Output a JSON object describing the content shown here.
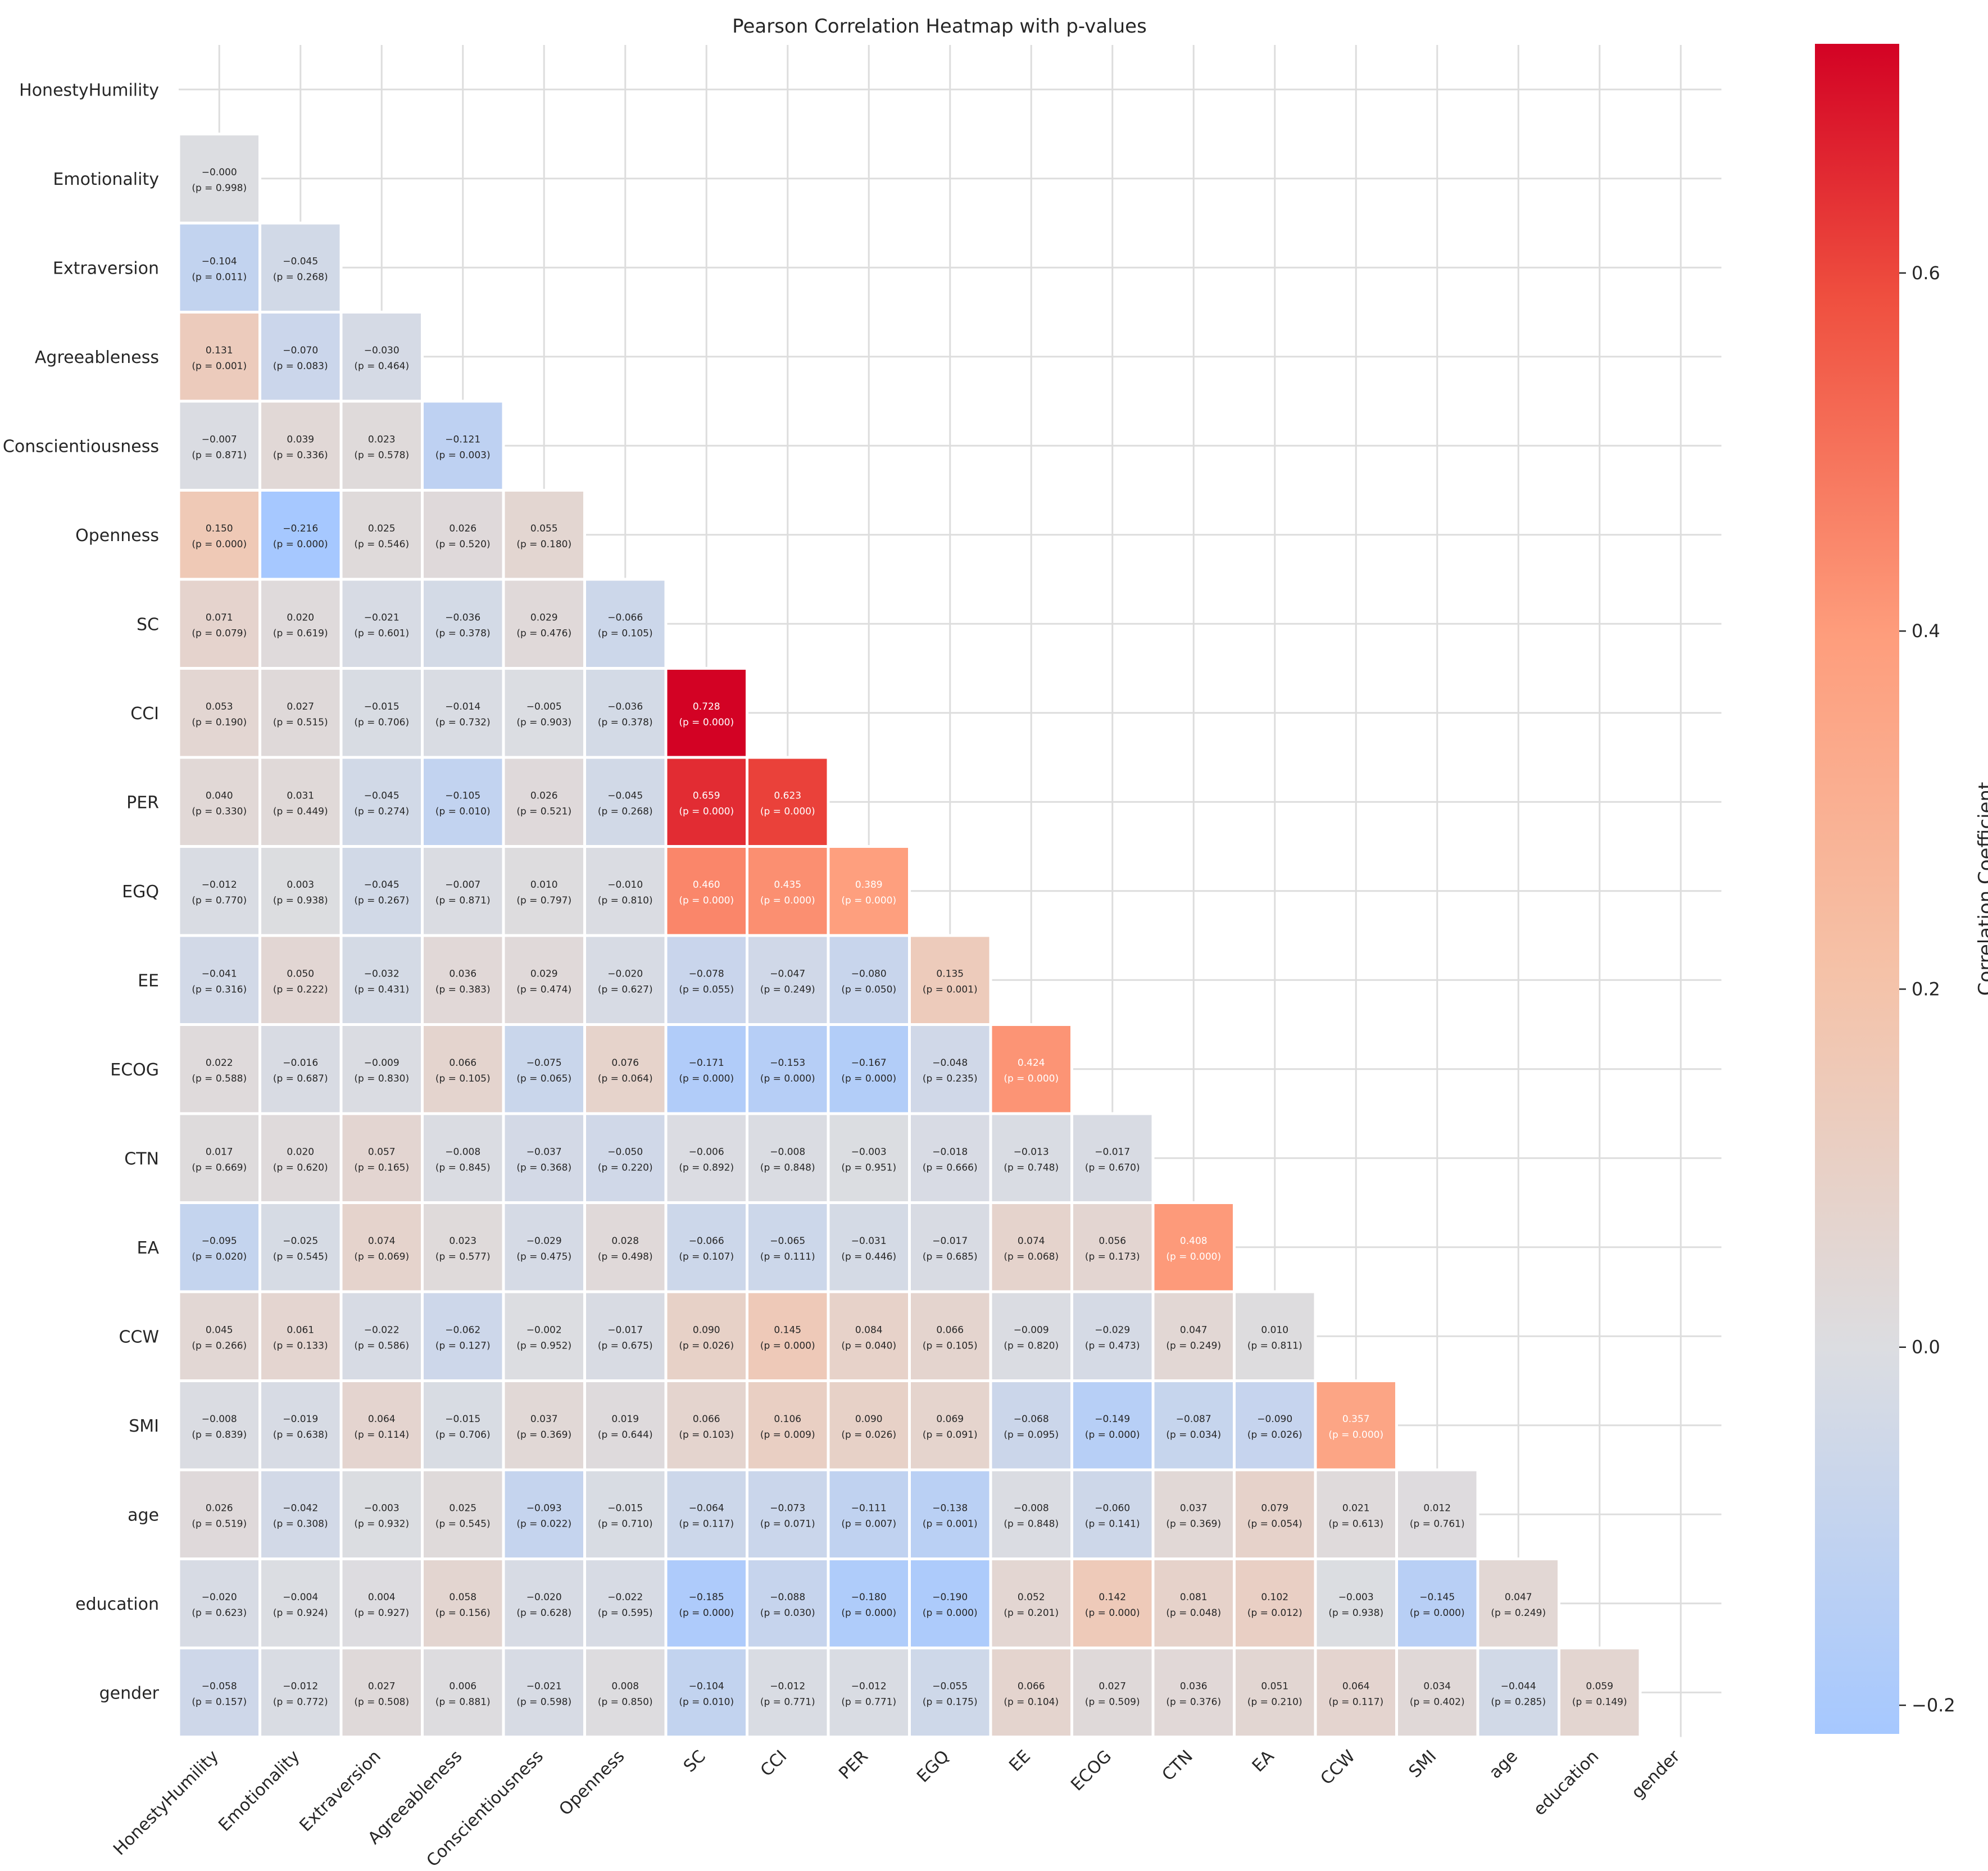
{
  "chart_data": {
    "type": "heatmap",
    "title": "Pearson Correlation Heatmap with p-values",
    "variables": [
      "HonestyHumility",
      "Emotionality",
      "Extraversion",
      "Agreeableness",
      "Conscientiousness",
      "Openness",
      "SC",
      "CCI",
      "PER",
      "EGQ",
      "EE",
      "ECOG",
      "CTN",
      "EA",
      "CCW",
      "SMI",
      "age",
      "education",
      "gender"
    ],
    "mask": "upper triangle including diagonal",
    "r": [
      [],
      [
        "−0.000"
      ],
      [
        "−0.104",
        "−0.045"
      ],
      [
        "0.131",
        "−0.070",
        "−0.030"
      ],
      [
        "−0.007",
        "0.039",
        "0.023",
        "−0.121"
      ],
      [
        "0.150",
        "−0.216",
        "0.025",
        "0.026",
        "0.055"
      ],
      [
        "0.071",
        "0.020",
        "−0.021",
        "−0.036",
        "0.029",
        "−0.066"
      ],
      [
        "0.053",
        "0.027",
        "−0.015",
        "−0.014",
        "−0.005",
        "−0.036",
        "0.728"
      ],
      [
        "0.040",
        "0.031",
        "−0.045",
        "−0.105",
        "0.026",
        "−0.045",
        "0.659",
        "0.623"
      ],
      [
        "−0.012",
        "0.003",
        "−0.045",
        "−0.007",
        "0.010",
        "−0.010",
        "0.460",
        "0.435",
        "0.389"
      ],
      [
        "−0.041",
        "0.050",
        "−0.032",
        "0.036",
        "0.029",
        "−0.020",
        "−0.078",
        "−0.047",
        "−0.080",
        "0.135"
      ],
      [
        "0.022",
        "−0.016",
        "−0.009",
        "0.066",
        "−0.075",
        "0.076",
        "−0.171",
        "−0.153",
        "−0.167",
        "−0.048",
        "0.424"
      ],
      [
        "0.017",
        "0.020",
        "0.057",
        "−0.008",
        "−0.037",
        "−0.050",
        "−0.006",
        "−0.008",
        "−0.003",
        "−0.018",
        "−0.013",
        "−0.017"
      ],
      [
        "−0.095",
        "−0.025",
        "0.074",
        "0.023",
        "−0.029",
        "0.028",
        "−0.066",
        "−0.065",
        "−0.031",
        "−0.017",
        "0.074",
        "0.056",
        "0.408"
      ],
      [
        "0.045",
        "0.061",
        "−0.022",
        "−0.062",
        "−0.002",
        "−0.017",
        "0.090",
        "0.145",
        "0.084",
        "0.066",
        "−0.009",
        "−0.029",
        "0.047",
        "0.010"
      ],
      [
        "−0.008",
        "−0.019",
        "0.064",
        "−0.015",
        "0.037",
        "0.019",
        "0.066",
        "0.106",
        "0.090",
        "0.069",
        "−0.068",
        "−0.149",
        "−0.087",
        "−0.090",
        "0.357"
      ],
      [
        "0.026",
        "−0.042",
        "−0.003",
        "0.025",
        "−0.093",
        "−0.015",
        "−0.064",
        "−0.073",
        "−0.111",
        "−0.138",
        "−0.008",
        "−0.060",
        "0.037",
        "0.079",
        "0.021",
        "0.012"
      ],
      [
        "−0.020",
        "−0.004",
        "0.004",
        "0.058",
        "−0.020",
        "−0.022",
        "−0.185",
        "−0.088",
        "−0.180",
        "−0.190",
        "0.052",
        "0.142",
        "0.081",
        "0.102",
        "−0.003",
        "−0.145",
        "0.047"
      ],
      [
        "−0.058",
        "−0.012",
        "0.027",
        "0.006",
        "−0.021",
        "0.008",
        "−0.104",
        "−0.012",
        "−0.012",
        "−0.055",
        "0.066",
        "0.027",
        "0.036",
        "0.051",
        "0.064",
        "0.034",
        "−0.044",
        "0.059"
      ]
    ],
    "p": [
      [],
      [
        "(p = 0.998)"
      ],
      [
        "(p = 0.011)",
        "(p = 0.268)"
      ],
      [
        "(p = 0.001)",
        "(p = 0.083)",
        "(p = 0.464)"
      ],
      [
        "(p = 0.871)",
        "(p = 0.336)",
        "(p = 0.578)",
        "(p = 0.003)"
      ],
      [
        "(p = 0.000)",
        "(p = 0.000)",
        "(p = 0.546)",
        "(p = 0.520)",
        "(p = 0.180)"
      ],
      [
        "(p = 0.079)",
        "(p = 0.619)",
        "(p = 0.601)",
        "(p = 0.378)",
        "(p = 0.476)",
        "(p = 0.105)"
      ],
      [
        "(p = 0.190)",
        "(p = 0.515)",
        "(p = 0.706)",
        "(p = 0.732)",
        "(p = 0.903)",
        "(p = 0.378)",
        "(p = 0.000)"
      ],
      [
        "(p = 0.330)",
        "(p = 0.449)",
        "(p = 0.274)",
        "(p = 0.010)",
        "(p = 0.521)",
        "(p = 0.268)",
        "(p = 0.000)",
        "(p = 0.000)"
      ],
      [
        "(p = 0.770)",
        "(p = 0.938)",
        "(p = 0.267)",
        "(p = 0.871)",
        "(p = 0.797)",
        "(p = 0.810)",
        "(p = 0.000)",
        "(p = 0.000)",
        "(p = 0.000)"
      ],
      [
        "(p = 0.316)",
        "(p = 0.222)",
        "(p = 0.431)",
        "(p = 0.383)",
        "(p = 0.474)",
        "(p = 0.627)",
        "(p = 0.055)",
        "(p = 0.249)",
        "(p = 0.050)",
        "(p = 0.001)"
      ],
      [
        "(p = 0.588)",
        "(p = 0.687)",
        "(p = 0.830)",
        "(p = 0.105)",
        "(p = 0.065)",
        "(p = 0.064)",
        "(p = 0.000)",
        "(p = 0.000)",
        "(p = 0.000)",
        "(p = 0.235)",
        "(p = 0.000)"
      ],
      [
        "(p = 0.669)",
        "(p = 0.620)",
        "(p = 0.165)",
        "(p = 0.845)",
        "(p = 0.368)",
        "(p = 0.220)",
        "(p = 0.892)",
        "(p = 0.848)",
        "(p = 0.951)",
        "(p = 0.666)",
        "(p = 0.748)",
        "(p = 0.670)"
      ],
      [
        "(p = 0.020)",
        "(p = 0.545)",
        "(p = 0.069)",
        "(p = 0.577)",
        "(p = 0.475)",
        "(p = 0.498)",
        "(p = 0.107)",
        "(p = 0.111)",
        "(p = 0.446)",
        "(p = 0.685)",
        "(p = 0.068)",
        "(p = 0.173)",
        "(p = 0.000)"
      ],
      [
        "(p = 0.266)",
        "(p = 0.133)",
        "(p = 0.586)",
        "(p = 0.127)",
        "(p = 0.952)",
        "(p = 0.675)",
        "(p = 0.026)",
        "(p = 0.000)",
        "(p = 0.040)",
        "(p = 0.105)",
        "(p = 0.820)",
        "(p = 0.473)",
        "(p = 0.249)",
        "(p = 0.811)"
      ],
      [
        "(p = 0.839)",
        "(p = 0.638)",
        "(p = 0.114)",
        "(p = 0.706)",
        "(p = 0.369)",
        "(p = 0.644)",
        "(p = 0.103)",
        "(p = 0.009)",
        "(p = 0.026)",
        "(p = 0.091)",
        "(p = 0.095)",
        "(p = 0.000)",
        "(p = 0.034)",
        "(p = 0.026)",
        "(p = 0.000)"
      ],
      [
        "(p = 0.519)",
        "(p = 0.308)",
        "(p = 0.932)",
        "(p = 0.545)",
        "(p = 0.022)",
        "(p = 0.710)",
        "(p = 0.117)",
        "(p = 0.071)",
        "(p = 0.007)",
        "(p = 0.001)",
        "(p = 0.848)",
        "(p = 0.141)",
        "(p = 0.369)",
        "(p = 0.054)",
        "(p = 0.613)",
        "(p = 0.761)"
      ],
      [
        "(p = 0.623)",
        "(p = 0.924)",
        "(p = 0.927)",
        "(p = 0.156)",
        "(p = 0.628)",
        "(p = 0.595)",
        "(p = 0.000)",
        "(p = 0.030)",
        "(p = 0.000)",
        "(p = 0.000)",
        "(p = 0.201)",
        "(p = 0.000)",
        "(p = 0.048)",
        "(p = 0.012)",
        "(p = 0.938)",
        "(p = 0.000)",
        "(p = 0.249)"
      ],
      [
        "(p = 0.157)",
        "(p = 0.772)",
        "(p = 0.508)",
        "(p = 0.881)",
        "(p = 0.598)",
        "(p = 0.850)",
        "(p = 0.010)",
        "(p = 0.771)",
        "(p = 0.771)",
        "(p = 0.175)",
        "(p = 0.104)",
        "(p = 0.509)",
        "(p = 0.376)",
        "(p = 0.210)",
        "(p = 0.117)",
        "(p = 0.402)",
        "(p = 0.285)",
        "(p = 0.149)"
      ]
    ],
    "colorbar": {
      "label": "Correlation Coefficient",
      "vmin": -0.216,
      "vmax": 0.728,
      "center": 0,
      "colormap": "coolwarm",
      "ticks": [
        {
          "value": -0.2,
          "label": "−0.2"
        },
        {
          "value": 0.0,
          "label": "0.0"
        },
        {
          "value": 0.2,
          "label": "0.2"
        },
        {
          "value": 0.4,
          "label": "0.4"
        },
        {
          "value": 0.6,
          "label": "0.6"
        }
      ]
    },
    "grid": true
  },
  "colors": {
    "grid": "#dddddd",
    "cell_border": "#ffffff",
    "text_dark": "#262626",
    "text_light": "#ffffff"
  }
}
